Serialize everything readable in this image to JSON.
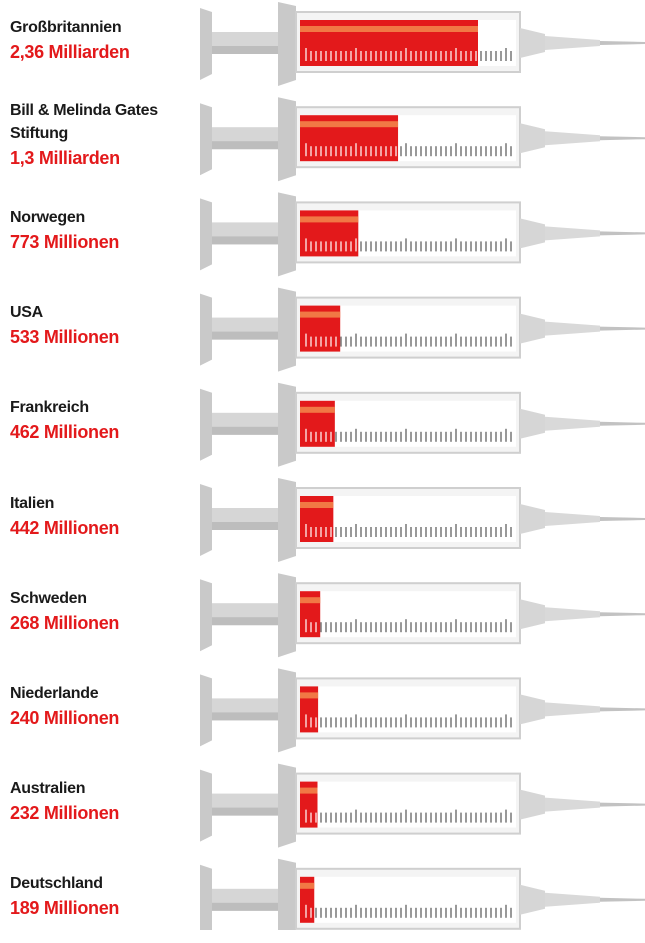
{
  "chart_data": {
    "type": "bar",
    "orientation": "horizontal",
    "categories": [
      "Großbritannien",
      "Bill & Melinda Gates Stiftung",
      "Norwegen",
      "USA",
      "Frankreich",
      "Italien",
      "Schweden",
      "Niederlande",
      "Australien",
      "Deutschland"
    ],
    "values": [
      2360,
      1300,
      773,
      533,
      462,
      442,
      268,
      240,
      232,
      189
    ],
    "value_labels": [
      "2,36 Milliarden",
      "1,3 Milliarden",
      "773 Millionen",
      "533 Millionen",
      "462 Millionen",
      "442 Millionen",
      "268 Millionen",
      "240 Millionen",
      "232 Millionen",
      "189 Millionen"
    ],
    "color": "#e3191b"
  }
}
